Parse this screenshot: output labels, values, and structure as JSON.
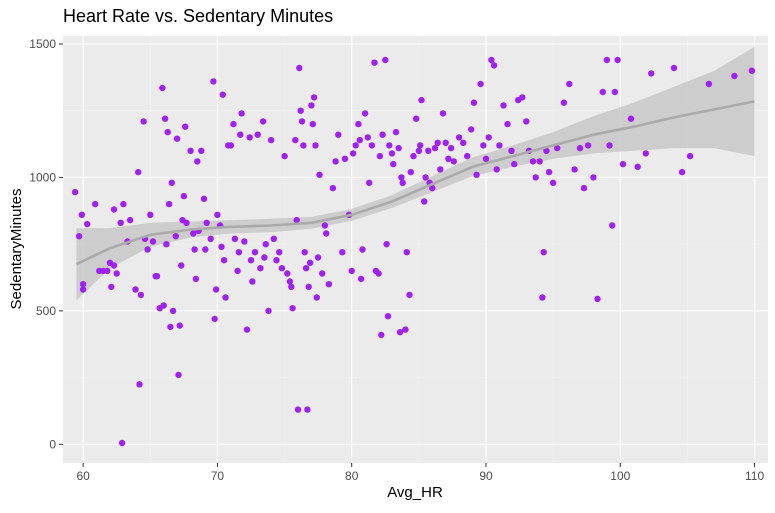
{
  "chart_data": {
    "type": "scatter",
    "title": "Heart Rate vs. Sedentary Minutes",
    "xlabel": "Avg_HR",
    "ylabel": "SedentaryMinutes",
    "xlim": [
      58.5,
      111
    ],
    "ylim": [
      -70,
      1530
    ],
    "x_ticks": [
      60,
      70,
      80,
      90,
      100,
      110
    ],
    "y_ticks": [
      0,
      500,
      1000,
      1500
    ],
    "x_tick_labels": [
      "60",
      "70",
      "80",
      "90",
      "100",
      "110"
    ],
    "y_tick_labels": [
      "0",
      "500",
      "1000",
      "1500"
    ],
    "grid": true,
    "legend": "none",
    "colors": {
      "panel_background": "#ebebeb",
      "grid_major": "#ffffff",
      "grid_minor": "#f2f2f2",
      "points": "#a020f0",
      "smooth_line": "#aaaaaa",
      "confidence_band": "#c8c8c8"
    },
    "smooth": {
      "x": [
        59.5,
        62,
        65,
        68,
        71,
        74,
        77,
        80,
        83,
        86,
        89,
        92,
        95,
        98,
        101,
        104,
        107,
        110
      ],
      "y": [
        675,
        735,
        785,
        805,
        815,
        820,
        830,
        860,
        910,
        975,
        1040,
        1080,
        1120,
        1160,
        1190,
        1225,
        1255,
        1285
      ],
      "lower": [
        540,
        660,
        740,
        775,
        790,
        795,
        808,
        838,
        886,
        945,
        1005,
        1040,
        1070,
        1090,
        1100,
        1110,
        1110,
        1080
      ],
      "upper": [
        810,
        810,
        830,
        835,
        840,
        845,
        852,
        882,
        934,
        1005,
        1075,
        1120,
        1170,
        1230,
        1280,
        1340,
        1400,
        1490
      ]
    },
    "points": [
      [
        59.4,
        945
      ],
      [
        59.7,
        780
      ],
      [
        59.9,
        860
      ],
      [
        60.0,
        600
      ],
      [
        60.0,
        580
      ],
      [
        60.3,
        825
      ],
      [
        60.9,
        900
      ],
      [
        61.2,
        650
      ],
      [
        61.5,
        650
      ],
      [
        61.8,
        650
      ],
      [
        62.0,
        680
      ],
      [
        62.1,
        590
      ],
      [
        62.3,
        880
      ],
      [
        62.3,
        670
      ],
      [
        62.5,
        640
      ],
      [
        62.8,
        830
      ],
      [
        62.9,
        5
      ],
      [
        63.0,
        900
      ],
      [
        63.3,
        760
      ],
      [
        63.5,
        840
      ],
      [
        63.9,
        580
      ],
      [
        64.1,
        1020
      ],
      [
        64.2,
        225
      ],
      [
        64.3,
        560
      ],
      [
        64.5,
        1210
      ],
      [
        64.6,
        770
      ],
      [
        64.8,
        730
      ],
      [
        65.0,
        860
      ],
      [
        65.2,
        760
      ],
      [
        65.4,
        630
      ],
      [
        65.5,
        630
      ],
      [
        65.7,
        510
      ],
      [
        65.9,
        1335
      ],
      [
        66.0,
        520
      ],
      [
        66.1,
        1220
      ],
      [
        66.2,
        750
      ],
      [
        66.3,
        1170
      ],
      [
        66.4,
        900
      ],
      [
        66.5,
        440
      ],
      [
        66.6,
        980
      ],
      [
        66.7,
        500
      ],
      [
        66.9,
        780
      ],
      [
        67.0,
        1145
      ],
      [
        67.1,
        260
      ],
      [
        67.2,
        445
      ],
      [
        67.3,
        670
      ],
      [
        67.4,
        840
      ],
      [
        67.5,
        930
      ],
      [
        67.6,
        1190
      ],
      [
        67.7,
        830
      ],
      [
        68.0,
        1100
      ],
      [
        68.2,
        790
      ],
      [
        68.3,
        730
      ],
      [
        68.4,
        620
      ],
      [
        68.5,
        1060
      ],
      [
        68.6,
        800
      ],
      [
        68.8,
        1100
      ],
      [
        69.0,
        920
      ],
      [
        69.1,
        730
      ],
      [
        69.2,
        830
      ],
      [
        69.5,
        770
      ],
      [
        69.7,
        1360
      ],
      [
        69.8,
        470
      ],
      [
        69.9,
        580
      ],
      [
        70.0,
        860
      ],
      [
        70.2,
        820
      ],
      [
        70.3,
        740
      ],
      [
        70.4,
        1310
      ],
      [
        70.5,
        690
      ],
      [
        70.6,
        550
      ],
      [
        70.8,
        1120
      ],
      [
        71.0,
        1120
      ],
      [
        71.2,
        1200
      ],
      [
        71.3,
        770
      ],
      [
        71.5,
        650
      ],
      [
        71.6,
        720
      ],
      [
        71.7,
        1160
      ],
      [
        71.8,
        1240
      ],
      [
        72.0,
        760
      ],
      [
        72.2,
        430
      ],
      [
        72.4,
        1150
      ],
      [
        72.5,
        690
      ],
      [
        72.6,
        610
      ],
      [
        72.8,
        720
      ],
      [
        73.0,
        1160
      ],
      [
        73.2,
        660
      ],
      [
        73.4,
        1210
      ],
      [
        73.5,
        700
      ],
      [
        73.6,
        750
      ],
      [
        73.8,
        500
      ],
      [
        74.0,
        1140
      ],
      [
        74.2,
        770
      ],
      [
        74.4,
        690
      ],
      [
        74.6,
        720
      ],
      [
        74.8,
        660
      ],
      [
        75.0,
        1080
      ],
      [
        75.2,
        640
      ],
      [
        75.4,
        610
      ],
      [
        75.5,
        590
      ],
      [
        75.6,
        510
      ],
      [
        75.8,
        1140
      ],
      [
        75.9,
        840
      ],
      [
        76.0,
        130
      ],
      [
        76.1,
        1410
      ],
      [
        76.2,
        1250
      ],
      [
        76.3,
        1210
      ],
      [
        76.4,
        1120
      ],
      [
        76.5,
        720
      ],
      [
        76.6,
        660
      ],
      [
        76.7,
        130
      ],
      [
        76.8,
        590
      ],
      [
        76.9,
        680
      ],
      [
        77.0,
        1270
      ],
      [
        77.1,
        1200
      ],
      [
        77.2,
        1300
      ],
      [
        77.3,
        1120
      ],
      [
        77.4,
        550
      ],
      [
        77.5,
        700
      ],
      [
        77.6,
        1010
      ],
      [
        77.8,
        640
      ],
      [
        78.0,
        820
      ],
      [
        78.1,
        790
      ],
      [
        78.3,
        600
      ],
      [
        78.6,
        960
      ],
      [
        78.8,
        1060
      ],
      [
        79.0,
        1160
      ],
      [
        79.3,
        720
      ],
      [
        79.5,
        1070
      ],
      [
        79.8,
        860
      ],
      [
        80.0,
        650
      ],
      [
        80.1,
        1090
      ],
      [
        80.3,
        1120
      ],
      [
        80.5,
        1200
      ],
      [
        80.6,
        1140
      ],
      [
        80.7,
        620
      ],
      [
        80.8,
        730
      ],
      [
        81.0,
        1240
      ],
      [
        81.2,
        1150
      ],
      [
        81.3,
        980
      ],
      [
        81.5,
        1120
      ],
      [
        81.7,
        1430
      ],
      [
        81.8,
        650
      ],
      [
        82.0,
        640
      ],
      [
        82.1,
        1080
      ],
      [
        82.2,
        410
      ],
      [
        82.3,
        1160
      ],
      [
        82.5,
        1440
      ],
      [
        82.6,
        750
      ],
      [
        82.7,
        480
      ],
      [
        82.8,
        1120
      ],
      [
        83.0,
        1090
      ],
      [
        83.1,
        1050
      ],
      [
        83.3,
        1170
      ],
      [
        83.5,
        1110
      ],
      [
        83.6,
        420
      ],
      [
        83.7,
        1000
      ],
      [
        83.8,
        980
      ],
      [
        84.0,
        430
      ],
      [
        84.1,
        720
      ],
      [
        84.3,
        560
      ],
      [
        84.4,
        1020
      ],
      [
        84.6,
        1080
      ],
      [
        84.8,
        1220
      ],
      [
        85.0,
        1100
      ],
      [
        85.1,
        1120
      ],
      [
        85.2,
        1290
      ],
      [
        85.4,
        910
      ],
      [
        85.5,
        1000
      ],
      [
        85.7,
        1100
      ],
      [
        85.8,
        980
      ],
      [
        86.0,
        960
      ],
      [
        86.2,
        1110
      ],
      [
        86.4,
        1130
      ],
      [
        86.6,
        1030
      ],
      [
        86.8,
        1240
      ],
      [
        87.0,
        1130
      ],
      [
        87.2,
        1070
      ],
      [
        87.4,
        1110
      ],
      [
        87.6,
        1060
      ],
      [
        88.0,
        1150
      ],
      [
        88.3,
        1130
      ],
      [
        88.6,
        1080
      ],
      [
        88.9,
        1180
      ],
      [
        89.1,
        1280
      ],
      [
        89.3,
        1010
      ],
      [
        89.6,
        1350
      ],
      [
        89.8,
        1120
      ],
      [
        90.0,
        1070
      ],
      [
        90.2,
        1150
      ],
      [
        90.4,
        1440
      ],
      [
        90.6,
        1420
      ],
      [
        90.8,
        1030
      ],
      [
        91.0,
        1120
      ],
      [
        91.3,
        1270
      ],
      [
        91.6,
        1200
      ],
      [
        91.9,
        1100
      ],
      [
        92.1,
        1050
      ],
      [
        92.4,
        1290
      ],
      [
        92.7,
        1300
      ],
      [
        93.0,
        1210
      ],
      [
        93.2,
        1100
      ],
      [
        93.5,
        1060
      ],
      [
        93.7,
        1000
      ],
      [
        94.0,
        1060
      ],
      [
        94.2,
        550
      ],
      [
        94.3,
        720
      ],
      [
        94.5,
        1100
      ],
      [
        94.7,
        1020
      ],
      [
        95.0,
        980
      ],
      [
        95.3,
        1110
      ],
      [
        95.8,
        1280
      ],
      [
        96.2,
        1350
      ],
      [
        96.6,
        1030
      ],
      [
        97.0,
        1110
      ],
      [
        97.3,
        960
      ],
      [
        97.6,
        1120
      ],
      [
        98.0,
        1000
      ],
      [
        98.3,
        545
      ],
      [
        98.7,
        1320
      ],
      [
        99.0,
        1440
      ],
      [
        99.2,
        1120
      ],
      [
        99.4,
        820
      ],
      [
        99.6,
        1320
      ],
      [
        99.8,
        1440
      ],
      [
        100.2,
        1050
      ],
      [
        100.8,
        1220
      ],
      [
        101.3,
        1040
      ],
      [
        101.9,
        1090
      ],
      [
        102.3,
        1390
      ],
      [
        104.0,
        1410
      ],
      [
        104.6,
        1020
      ],
      [
        105.2,
        1080
      ],
      [
        106.6,
        1350
      ],
      [
        108.5,
        1380
      ],
      [
        109.8,
        1400
      ]
    ]
  }
}
